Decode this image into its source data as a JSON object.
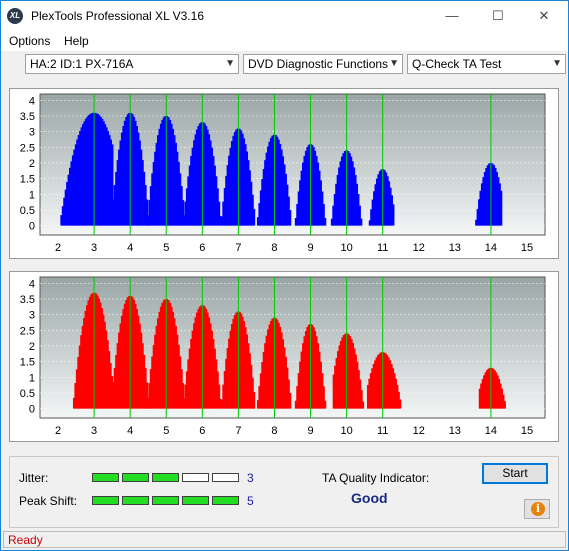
{
  "window": {
    "title": "PlexTools Professional XL V3.16",
    "icon_text": "XL",
    "controls": [
      "minimize",
      "maximize",
      "close"
    ]
  },
  "menu": {
    "options": "Options",
    "help": "Help"
  },
  "toolbar": {
    "drive": "HA:2 ID:1  PX-716A",
    "function": "DVD Diagnostic Functions",
    "test": "Q-Check TA Test"
  },
  "colors": {
    "top_series": "#0000ff",
    "bottom_series": "#ff0000",
    "marker_lines": "#00c800",
    "plot_background_top": "#9aa6a6",
    "plot_background_bottom": "#f4f6f6"
  },
  "chart_data": [
    {
      "type": "area",
      "title": "",
      "xlabel": "",
      "ylabel": "",
      "xlim": [
        1.5,
        15.5
      ],
      "ylim": [
        -0.3,
        4.2
      ],
      "x_ticks": [
        2,
        3,
        4,
        5,
        6,
        7,
        8,
        9,
        10,
        11,
        12,
        13,
        14,
        15
      ],
      "y_ticks": [
        "0",
        "0.5",
        "1",
        "1.5",
        "2",
        "2.5",
        "3",
        "3.5",
        "4"
      ],
      "y_tick_values": [
        0,
        0.5,
        1,
        1.5,
        2,
        2.5,
        3,
        3.5,
        4
      ],
      "marker_x": [
        3,
        4,
        5,
        6,
        7,
        8,
        9,
        10,
        11,
        14
      ],
      "grid": true,
      "series": [
        {
          "color": "#0000ff",
          "peaks": [
            {
              "center": 3.0,
              "start": 2.1,
              "end": 3.5,
              "height": 3.6
            },
            {
              "center": 4.0,
              "start": 3.5,
              "end": 4.5,
              "height": 3.6
            },
            {
              "center": 5.0,
              "start": 4.5,
              "end": 5.5,
              "height": 3.5
            },
            {
              "center": 6.0,
              "start": 5.5,
              "end": 6.5,
              "height": 3.3
            },
            {
              "center": 7.0,
              "start": 6.55,
              "end": 7.45,
              "height": 3.1
            },
            {
              "center": 8.0,
              "start": 7.55,
              "end": 8.45,
              "height": 2.9
            },
            {
              "center": 9.0,
              "start": 8.6,
              "end": 9.4,
              "height": 2.6
            },
            {
              "center": 10.0,
              "start": 9.6,
              "end": 10.4,
              "height": 2.4
            },
            {
              "center": 11.0,
              "start": 10.65,
              "end": 11.3,
              "height": 1.8
            },
            {
              "center": 14.0,
              "start": 13.6,
              "end": 14.3,
              "height": 2.0
            }
          ]
        }
      ]
    },
    {
      "type": "area",
      "title": "",
      "xlabel": "",
      "ylabel": "",
      "xlim": [
        1.5,
        15.5
      ],
      "ylim": [
        -0.3,
        4.2
      ],
      "x_ticks": [
        2,
        3,
        4,
        5,
        6,
        7,
        8,
        9,
        10,
        11,
        12,
        13,
        14,
        15
      ],
      "y_ticks": [
        "0",
        "0.5",
        "1",
        "1.5",
        "2",
        "2.5",
        "3",
        "3.5",
        "4"
      ],
      "y_tick_values": [
        0,
        0.5,
        1,
        1.5,
        2,
        2.5,
        3,
        3.5,
        4
      ],
      "marker_x": [
        3,
        4,
        5,
        6,
        7,
        8,
        9,
        10,
        11,
        14
      ],
      "grid": true,
      "series": [
        {
          "color": "#ff0000",
          "peaks": [
            {
              "center": 3.0,
              "start": 2.45,
              "end": 3.5,
              "height": 3.7
            },
            {
              "center": 4.0,
              "start": 3.5,
              "end": 4.5,
              "height": 3.6
            },
            {
              "center": 5.0,
              "start": 4.5,
              "end": 5.5,
              "height": 3.5
            },
            {
              "center": 6.0,
              "start": 5.5,
              "end": 6.5,
              "height": 3.3
            },
            {
              "center": 7.0,
              "start": 6.55,
              "end": 7.45,
              "height": 3.1
            },
            {
              "center": 8.0,
              "start": 7.55,
              "end": 8.45,
              "height": 2.9
            },
            {
              "center": 9.0,
              "start": 8.6,
              "end": 9.4,
              "height": 2.7
            },
            {
              "center": 10.0,
              "start": 9.65,
              "end": 10.45,
              "height": 2.4
            },
            {
              "center": 11.0,
              "start": 10.6,
              "end": 11.5,
              "height": 1.8
            },
            {
              "center": 14.0,
              "start": 13.7,
              "end": 14.4,
              "height": 1.3
            }
          ]
        }
      ]
    }
  ],
  "results": {
    "jitter_label": "Jitter:",
    "jitter_value": "3",
    "jitter_level": 3,
    "peak_shift_label": "Peak Shift:",
    "peak_shift_value": "5",
    "peak_shift_level": 5,
    "segments_total": 5,
    "ta_label": "TA Quality Indicator:",
    "ta_value": "Good",
    "start_label": "Start",
    "info_label": "i"
  },
  "status": {
    "text": "Ready"
  }
}
